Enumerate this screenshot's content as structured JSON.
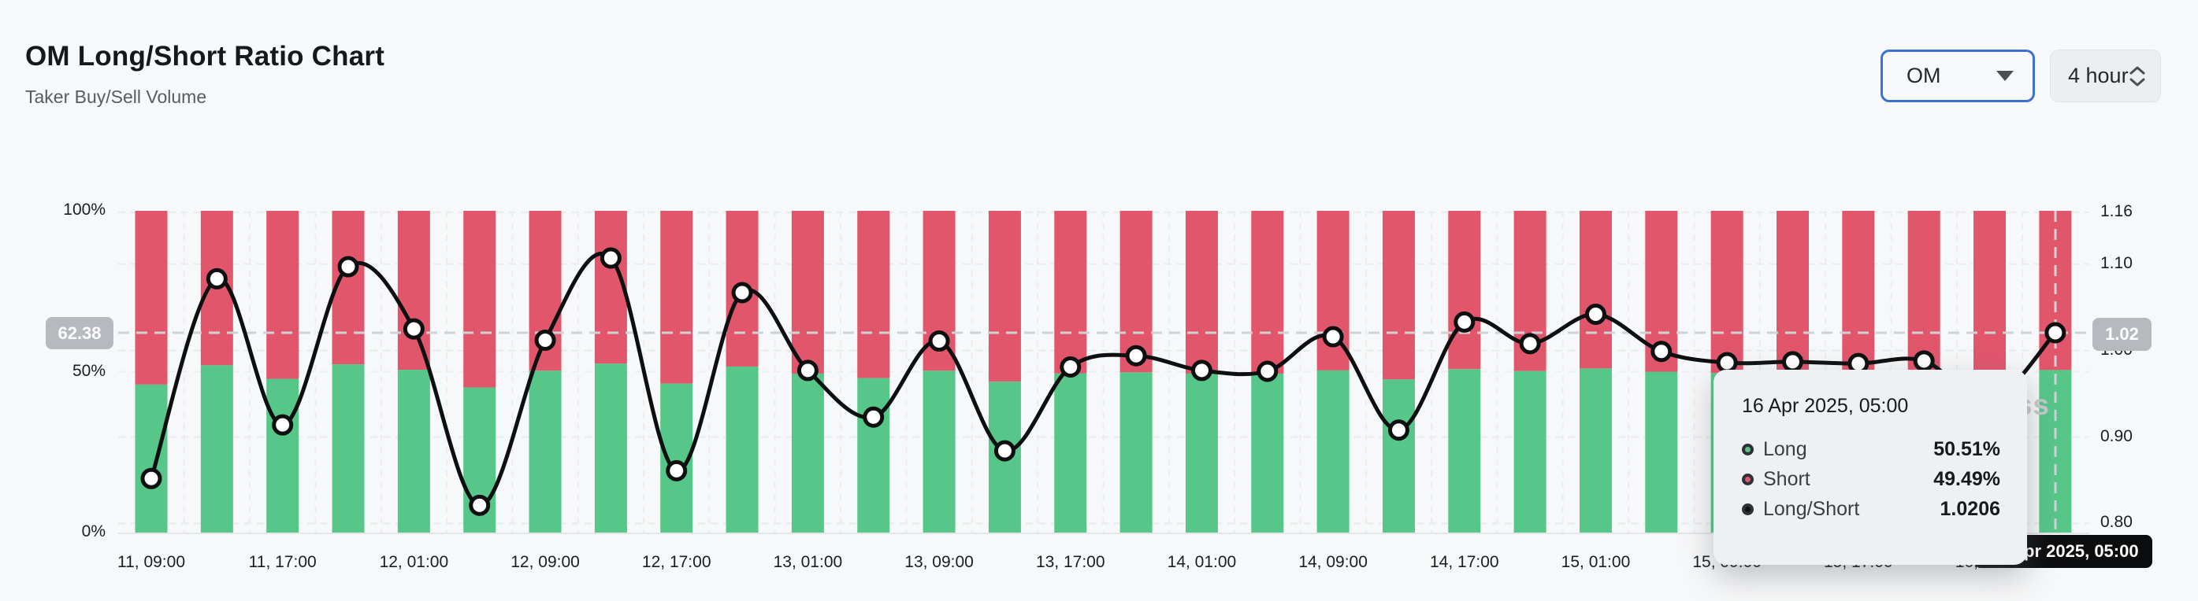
{
  "header": {
    "title": "OM Long/Short Ratio Chart",
    "subtitle": "Taker Buy/Sell Volume"
  },
  "controls": {
    "symbol_select": {
      "value": "OM"
    },
    "interval_select": {
      "value": "4 hour"
    }
  },
  "watermark_text": "CoinGlass",
  "crosshair": {
    "left_badge": "62.38",
    "right_badge": "1.02",
    "x_badge": "16 Apr 2025, 05:00"
  },
  "tooltip": {
    "date": "16 Apr 2025, 05:00",
    "rows": [
      {
        "label": "Long",
        "value": "50.51%",
        "color": "#57c689"
      },
      {
        "label": "Short",
        "value": "49.49%",
        "color": "#e2566c"
      },
      {
        "label": "Long/Short",
        "value": "1.0206",
        "color": "#121314"
      }
    ]
  },
  "chart_data": {
    "type": "bar+line",
    "title": "OM Long/Short Ratio Chart",
    "subtitle": "Taker Buy/Sell Volume",
    "x": [
      "11, 09:00",
      "11, 13:00",
      "11, 17:00",
      "11, 21:00",
      "12, 01:00",
      "12, 05:00",
      "12, 09:00",
      "12, 13:00",
      "12, 17:00",
      "12, 21:00",
      "13, 01:00",
      "13, 05:00",
      "13, 09:00",
      "13, 13:00",
      "13, 17:00",
      "13, 21:00",
      "14, 01:00",
      "14, 05:00",
      "14, 09:00",
      "14, 13:00",
      "14, 17:00",
      "14, 21:00",
      "15, 01:00",
      "15, 05:00",
      "15, 09:00",
      "15, 13:00",
      "15, 17:00",
      "15, 21:00",
      "16, 01:00",
      "16, 05:00"
    ],
    "x_tick_every": 2,
    "series": [
      {
        "name": "Long",
        "type": "bar",
        "stack": "volume",
        "unit": "%",
        "color": "#57c689",
        "values": [
          46.0,
          52.0,
          47.8,
          52.3,
          50.6,
          45.1,
          50.3,
          52.5,
          46.3,
          51.6,
          49.4,
          48.0,
          50.3,
          46.9,
          49.5,
          49.8,
          49.4,
          49.4,
          50.4,
          47.6,
          50.8,
          50.2,
          51.0,
          50.0,
          49.6,
          49.7,
          49.6,
          49.7,
          48.5,
          50.51
        ]
      },
      {
        "name": "Short",
        "type": "bar",
        "stack": "volume",
        "unit": "%",
        "color": "#e2566c",
        "values": [
          54.0,
          48.0,
          52.2,
          47.7,
          49.4,
          54.9,
          49.7,
          47.5,
          53.7,
          48.4,
          50.6,
          52.0,
          49.7,
          53.1,
          50.5,
          50.2,
          50.6,
          50.6,
          49.6,
          52.4,
          49.2,
          49.8,
          49.0,
          50.0,
          50.4,
          50.3,
          50.4,
          50.3,
          51.5,
          49.49
        ]
      },
      {
        "name": "Long/Short",
        "type": "line",
        "axis": "right",
        "color": "#0e0f10",
        "values": [
          0.852,
          1.083,
          0.914,
          1.097,
          1.025,
          0.821,
          1.012,
          1.107,
          0.861,
          1.067,
          0.977,
          0.923,
          1.011,
          0.884,
          0.981,
          0.994,
          0.977,
          0.976,
          1.016,
          0.908,
          1.033,
          1.008,
          1.042,
          0.999,
          0.986,
          0.987,
          0.985,
          0.988,
          0.941,
          1.0206
        ]
      }
    ],
    "left_axis": {
      "ticks": [
        "100%",
        "50%",
        "0%"
      ],
      "tick_values": [
        100,
        50,
        0
      ],
      "range": [
        0,
        100
      ]
    },
    "right_axis": {
      "ticks": [
        "1.16",
        "1.10",
        "1.00",
        "0.90",
        "0.80"
      ],
      "tick_values": [
        1.16,
        1.1,
        1.0,
        0.9,
        0.8
      ],
      "range": [
        0.789,
        1.162
      ]
    },
    "grid": true,
    "legend_position": "tooltip",
    "highlighted_point": {
      "x": "16, 05:00",
      "long_pct": 50.51,
      "short_pct": 49.49,
      "ratio": 1.0206
    }
  }
}
